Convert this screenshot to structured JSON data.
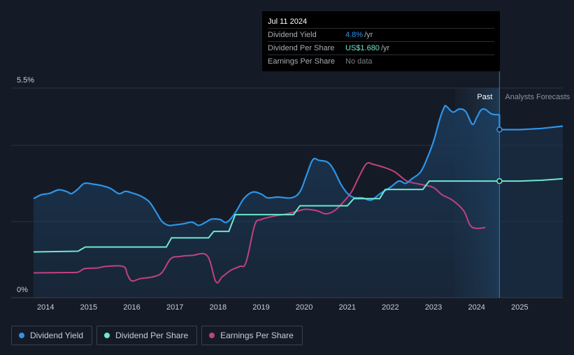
{
  "colors": {
    "background": "#151b26",
    "dividend_yield": "#2c95e8",
    "dividend_per_share": "#6ee8cf",
    "earnings_per_share": "#c0427f",
    "grid": "#2a3140",
    "axis_text": "#c9cfd8"
  },
  "tooltip": {
    "date": "Jul 11 2024",
    "rows": [
      {
        "label": "Dividend Yield",
        "value": "4.8%",
        "unit": "/yr",
        "color": "#2c95e8"
      },
      {
        "label": "Dividend Per Share",
        "value": "US$1.680",
        "unit": "/yr",
        "color": "#6ee8cf"
      },
      {
        "label": "Earnings Per Share",
        "value": "No data",
        "unit": "",
        "color": "#7a7f87"
      }
    ]
  },
  "legend": [
    {
      "label": "Dividend Yield",
      "color": "#2c95e8"
    },
    {
      "label": "Dividend Per Share",
      "color": "#6ee8cf"
    },
    {
      "label": "Earnings Per Share",
      "color": "#c0427f"
    }
  ],
  "chart_data": {
    "type": "line",
    "title": "",
    "ylim": [
      0,
      5.5
    ],
    "y_tick_labels": [
      {
        "value": 5.5,
        "label": "5.5%"
      },
      {
        "value": 0,
        "label": "0%"
      }
    ],
    "xlim": [
      2013.72,
      2026.0
    ],
    "x_tick_labels": [
      "2014",
      "2015",
      "2016",
      "2017",
      "2018",
      "2019",
      "2020",
      "2021",
      "2022",
      "2023",
      "2024",
      "2025"
    ],
    "past_label": "Past",
    "forecast_label": "Analysts Forecasts",
    "divider_x": 2024.53,
    "forecast_shade_start": 2023.5,
    "series": [
      {
        "name": "Dividend Yield",
        "points": [
          [
            2013.72,
            2.6
          ],
          [
            2013.9,
            2.7
          ],
          [
            2014.1,
            2.74
          ],
          [
            2014.3,
            2.83
          ],
          [
            2014.5,
            2.78
          ],
          [
            2014.6,
            2.73
          ],
          [
            2014.75,
            2.85
          ],
          [
            2014.9,
            3.0
          ],
          [
            2015.1,
            2.98
          ],
          [
            2015.3,
            2.94
          ],
          [
            2015.5,
            2.87
          ],
          [
            2015.7,
            2.73
          ],
          [
            2015.85,
            2.79
          ],
          [
            2016.0,
            2.75
          ],
          [
            2016.2,
            2.67
          ],
          [
            2016.4,
            2.52
          ],
          [
            2016.55,
            2.27
          ],
          [
            2016.7,
            2.0
          ],
          [
            2016.85,
            1.9
          ],
          [
            2017.0,
            1.91
          ],
          [
            2017.2,
            1.94
          ],
          [
            2017.4,
            1.98
          ],
          [
            2017.55,
            1.9
          ],
          [
            2017.7,
            1.97
          ],
          [
            2017.85,
            2.06
          ],
          [
            2018.05,
            2.05
          ],
          [
            2018.2,
            1.98
          ],
          [
            2018.4,
            2.23
          ],
          [
            2018.6,
            2.6
          ],
          [
            2018.8,
            2.77
          ],
          [
            2019.0,
            2.72
          ],
          [
            2019.15,
            2.62
          ],
          [
            2019.4,
            2.64
          ],
          [
            2019.7,
            2.62
          ],
          [
            2019.9,
            2.78
          ],
          [
            2020.05,
            3.2
          ],
          [
            2020.2,
            3.62
          ],
          [
            2020.35,
            3.6
          ],
          [
            2020.55,
            3.55
          ],
          [
            2020.7,
            3.32
          ],
          [
            2020.85,
            2.98
          ],
          [
            2021.0,
            2.74
          ],
          [
            2021.15,
            2.63
          ],
          [
            2021.35,
            2.62
          ],
          [
            2021.55,
            2.56
          ],
          [
            2021.75,
            2.72
          ],
          [
            2022.0,
            2.9
          ],
          [
            2022.2,
            3.06
          ],
          [
            2022.35,
            3.0
          ],
          [
            2022.5,
            3.12
          ],
          [
            2022.7,
            3.3
          ],
          [
            2022.85,
            3.65
          ],
          [
            2023.0,
            4.1
          ],
          [
            2023.15,
            4.7
          ],
          [
            2023.25,
            5.0
          ],
          [
            2023.3,
            5.02
          ],
          [
            2023.45,
            4.87
          ],
          [
            2023.6,
            4.95
          ],
          [
            2023.75,
            4.88
          ],
          [
            2023.9,
            4.55
          ],
          [
            2024.0,
            4.72
          ],
          [
            2024.1,
            4.92
          ],
          [
            2024.2,
            4.94
          ],
          [
            2024.35,
            4.82
          ],
          [
            2024.53,
            4.8
          ]
        ]
      },
      {
        "name": "Dividend Yield Forecast",
        "points": [
          [
            2024.53,
            4.8
          ],
          [
            2024.53,
            4.41
          ],
          [
            2025.0,
            4.41
          ],
          [
            2025.5,
            4.44
          ],
          [
            2026.0,
            4.5
          ]
        ]
      },
      {
        "name": "Dividend Per Share",
        "points": [
          [
            2013.72,
            1.2
          ],
          [
            2014.75,
            1.22
          ],
          [
            2014.92,
            1.33
          ],
          [
            2016.8,
            1.33
          ],
          [
            2016.92,
            1.57
          ],
          [
            2017.78,
            1.57
          ],
          [
            2017.9,
            1.74
          ],
          [
            2018.25,
            1.74
          ],
          [
            2018.4,
            2.18
          ],
          [
            2019.75,
            2.18
          ],
          [
            2019.9,
            2.41
          ],
          [
            2021.0,
            2.41
          ],
          [
            2021.15,
            2.6
          ],
          [
            2021.75,
            2.6
          ],
          [
            2021.88,
            2.84
          ],
          [
            2022.75,
            2.84
          ],
          [
            2022.9,
            3.06
          ],
          [
            2024.53,
            3.06
          ]
        ]
      },
      {
        "name": "Dividend Per Share Forecast",
        "points": [
          [
            2024.53,
            3.06
          ],
          [
            2025.0,
            3.06
          ],
          [
            2025.5,
            3.08
          ],
          [
            2026.0,
            3.12
          ]
        ]
      },
      {
        "name": "Earnings Per Share",
        "points": [
          [
            2013.72,
            0.65
          ],
          [
            2014.5,
            0.66
          ],
          [
            2014.75,
            0.67
          ],
          [
            2014.9,
            0.76
          ],
          [
            2015.2,
            0.78
          ],
          [
            2015.4,
            0.82
          ],
          [
            2015.8,
            0.82
          ],
          [
            2015.9,
            0.6
          ],
          [
            2016.0,
            0.44
          ],
          [
            2016.2,
            0.5
          ],
          [
            2016.5,
            0.55
          ],
          [
            2016.7,
            0.66
          ],
          [
            2016.9,
            1.02
          ],
          [
            2017.1,
            1.08
          ],
          [
            2017.4,
            1.11
          ],
          [
            2017.75,
            1.1
          ],
          [
            2017.95,
            0.42
          ],
          [
            2018.1,
            0.55
          ],
          [
            2018.3,
            0.72
          ],
          [
            2018.5,
            0.82
          ],
          [
            2018.65,
            0.93
          ],
          [
            2018.85,
            1.9
          ],
          [
            2019.0,
            2.05
          ],
          [
            2019.3,
            2.14
          ],
          [
            2019.6,
            2.2
          ],
          [
            2019.9,
            2.29
          ],
          [
            2020.05,
            2.32
          ],
          [
            2020.3,
            2.28
          ],
          [
            2020.5,
            2.2
          ],
          [
            2020.7,
            2.28
          ],
          [
            2020.9,
            2.5
          ],
          [
            2021.1,
            2.78
          ],
          [
            2021.3,
            3.24
          ],
          [
            2021.45,
            3.52
          ],
          [
            2021.6,
            3.5
          ],
          [
            2021.85,
            3.42
          ],
          [
            2022.1,
            3.3
          ],
          [
            2022.35,
            3.08
          ],
          [
            2022.5,
            3.02
          ],
          [
            2022.8,
            2.95
          ],
          [
            2023.0,
            2.89
          ],
          [
            2023.2,
            2.7
          ],
          [
            2023.45,
            2.55
          ],
          [
            2023.7,
            2.28
          ],
          [
            2023.85,
            1.9
          ],
          [
            2024.0,
            1.82
          ],
          [
            2024.2,
            1.84
          ]
        ]
      }
    ]
  }
}
